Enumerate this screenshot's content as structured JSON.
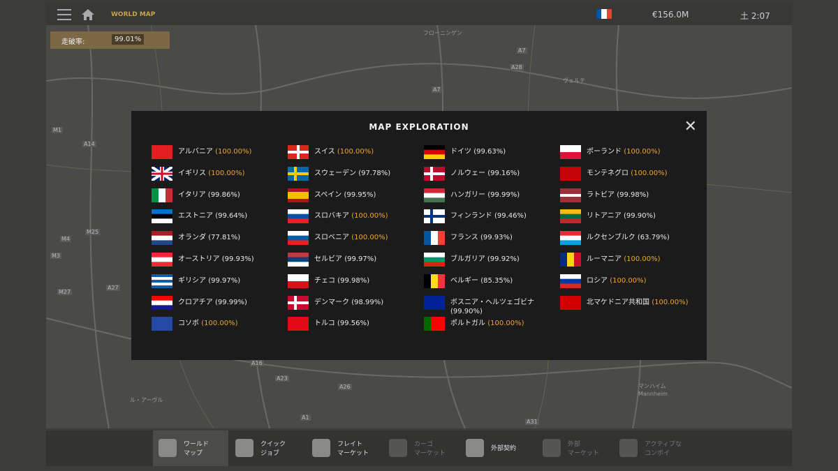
{
  "header": {
    "breadcrumb": "WORLD MAP",
    "money": "€156.0M",
    "time": "土 2:07"
  },
  "exploration_badge": {
    "label": "走破率:",
    "value": "99.01%"
  },
  "map_labels": [
    "フローニンゲン",
    "A7",
    "A28",
    "A7",
    "A16",
    "A23",
    "A26",
    "A31",
    "A1",
    "A27",
    "M1",
    "M4",
    "M3",
    "M27",
    "M25",
    "A14",
    "マンハイム",
    "Mannheim",
    "ヴェルテ",
    "ル・アーヴル"
  ],
  "modal": {
    "title": "MAP EXPLORATION",
    "countries": [
      [
        {
          "name": "アルバニア",
          "percent": "(100.00%)",
          "color": "#f0a530"
        },
        {
          "name": "イギリス",
          "percent": "(100.00%)",
          "color": "#f0a530"
        },
        {
          "name": "イタリア",
          "percent": "(99.86%)",
          "color": "#e8e8e8"
        },
        {
          "name": "エストニア",
          "percent": "(99.64%)",
          "color": "#e8e8e8"
        },
        {
          "name": "オランダ",
          "percent": "(77.81%)",
          "color": "#e8e8e8"
        },
        {
          "name": "オーストリア",
          "percent": "(99.93%)",
          "color": "#e8e8e8"
        },
        {
          "name": "ギリシア",
          "percent": "(99.97%)",
          "color": "#e8e8e8"
        },
        {
          "name": "クロアチア",
          "percent": "(99.99%)",
          "color": "#e8e8e8"
        },
        {
          "name": "コソボ",
          "percent": "(100.00%)",
          "color": "#f0a530"
        }
      ],
      [
        {
          "name": "スイス",
          "percent": "(100.00%)",
          "color": "#f0a530"
        },
        {
          "name": "スウェーデン",
          "percent": "(97.78%)",
          "color": "#e8e8e8"
        },
        {
          "name": "スペイン",
          "percent": "(99.95%)",
          "color": "#e8e8e8"
        },
        {
          "name": "スロバキア",
          "percent": "(100.00%)",
          "color": "#f0a530"
        },
        {
          "name": "スロベニア",
          "percent": "(100.00%)",
          "color": "#f0a530"
        },
        {
          "name": "セルビア",
          "percent": "(99.97%)",
          "color": "#e8e8e8"
        },
        {
          "name": "チェコ",
          "percent": "(99.98%)",
          "color": "#e8e8e8"
        },
        {
          "name": "デンマーク",
          "percent": "(98.99%)",
          "color": "#e8e8e8"
        },
        {
          "name": "トルコ",
          "percent": "(99.56%)",
          "color": "#e8e8e8"
        }
      ],
      [
        {
          "name": "ドイツ",
          "percent": "(99.63%)",
          "color": "#e8e8e8"
        },
        {
          "name": "ノルウェー",
          "percent": "(99.16%)",
          "color": "#e8e8e8"
        },
        {
          "name": "ハンガリー",
          "percent": "(99.99%)",
          "color": "#e8e8e8"
        },
        {
          "name": "フィンランド",
          "percent": "(99.46%)",
          "color": "#e8e8e8"
        },
        {
          "name": "フランス",
          "percent": "(99.93%)",
          "color": "#e8e8e8"
        },
        {
          "name": "ブルガリア",
          "percent": "(99.92%)",
          "color": "#e8e8e8"
        },
        {
          "name": "ベルギー",
          "percent": "(85.35%)",
          "color": "#e8e8e8"
        },
        {
          "name": "ボスニア・ヘルツェゴビナ",
          "percent": "(99.90%)",
          "color": "#e8e8e8"
        },
        {
          "name": "ポルトガル",
          "percent": "(100.00%)",
          "color": "#f0a530"
        }
      ],
      [
        {
          "name": "ポーランド",
          "percent": "(100.00%)",
          "color": "#f0a530"
        },
        {
          "name": "モンテネグロ",
          "percent": "(100.00%)",
          "color": "#f0a530"
        },
        {
          "name": "ラトビア",
          "percent": "(99.98%)",
          "color": "#e8e8e8"
        },
        {
          "name": "リトアニア",
          "percent": "(99.90%)",
          "color": "#e8e8e8"
        },
        {
          "name": "ルクセンブルク",
          "percent": "(63.79%)",
          "color": "#e8e8e8"
        },
        {
          "name": "ルーマニア",
          "percent": "(100.00%)",
          "color": "#f0a530"
        },
        {
          "name": "ロシア",
          "percent": "(100.00%)",
          "color": "#f0a530"
        },
        {
          "name": "北マケドニア共和国",
          "percent": "(100.00%)",
          "color": "#f0a530"
        }
      ]
    ]
  },
  "bottom_menu": [
    {
      "lines": [
        "ワールド",
        "マップ"
      ],
      "enabled": true,
      "active": true
    },
    {
      "lines": [
        "クイック",
        "ジョブ"
      ],
      "enabled": true,
      "active": false
    },
    {
      "lines": [
        "フレイト",
        "マーケット"
      ],
      "enabled": true,
      "active": false
    },
    {
      "lines": [
        "カーゴ",
        "マーケット"
      ],
      "enabled": false,
      "active": false
    },
    {
      "lines": [
        "外部契約"
      ],
      "enabled": true,
      "active": false
    },
    {
      "lines": [
        "外部",
        "マーケット"
      ],
      "enabled": false,
      "active": false
    },
    {
      "lines": [
        "アクティブな",
        "コンボイ"
      ],
      "enabled": false,
      "active": false
    }
  ]
}
